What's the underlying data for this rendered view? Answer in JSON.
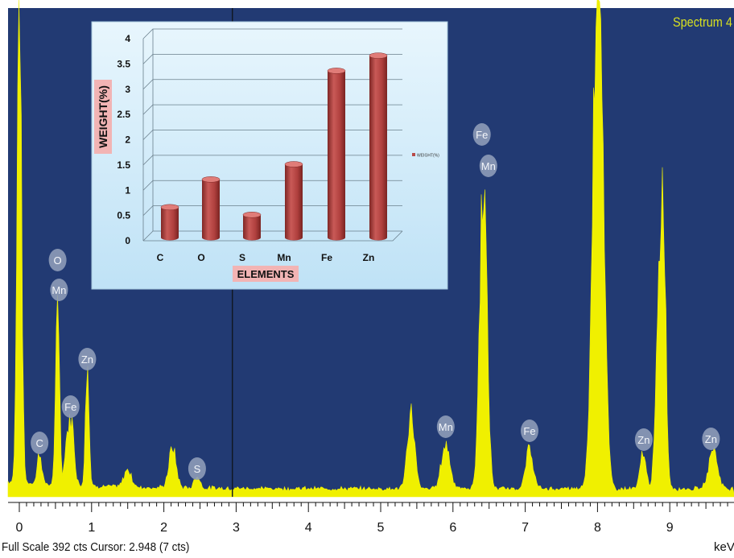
{
  "spectrum": {
    "title": "Spectrum 4",
    "status": "Full Scale 392 cts Cursor: 2.948  (7 cts)",
    "unit": "keV",
    "x_ticks": [
      "0",
      "1",
      "2",
      "3",
      "4",
      "5",
      "6",
      "7",
      "8",
      "9"
    ],
    "cursor_kev": 2.948,
    "peak_labels": [
      {
        "text": "O",
        "kev": 0.53
      },
      {
        "text": "Mn",
        "kev": 0.55
      },
      {
        "text": "Zn",
        "kev": 0.94
      },
      {
        "text": "Fe",
        "kev": 0.71
      },
      {
        "text": "C",
        "kev": 0.28
      },
      {
        "text": "S",
        "kev": 2.46
      },
      {
        "text": "Mn",
        "kev": 5.9
      },
      {
        "text": "Fe",
        "kev": 6.4
      },
      {
        "text": "Mn",
        "kev": 6.49
      },
      {
        "text": "Fe",
        "kev": 7.06
      },
      {
        "text": "Zn",
        "kev": 8.64
      },
      {
        "text": "Zn",
        "kev": 9.57
      }
    ],
    "colors": {
      "background": "#223a73",
      "trace": "#f0f000",
      "badge": "#8e9cb8",
      "title": "#d8e020"
    }
  },
  "chart_data": {
    "type": "bar",
    "categories": [
      "C",
      "O",
      "S",
      "Mn",
      "Fe",
      "Zn"
    ],
    "series": [
      {
        "name": "WEIGHT(%)",
        "values": [
          0.6,
          1.15,
          0.45,
          1.45,
          3.3,
          3.6
        ]
      }
    ],
    "xlabel": "ELEMENTS",
    "ylabel": "WEIGHT(%)",
    "ylim": [
      0,
      4
    ],
    "y_ticks": [
      "0",
      "0.5",
      "1",
      "1.5",
      "2",
      "2.5",
      "3",
      "3.5",
      "4"
    ],
    "grid": true,
    "legend": "right",
    "colors": {
      "bar": "#b84a48",
      "bar_light": "#e07c78",
      "bar_dark": "#7f2725",
      "panel": "#cbe8f8",
      "label_box": "#f2b4b4"
    }
  }
}
